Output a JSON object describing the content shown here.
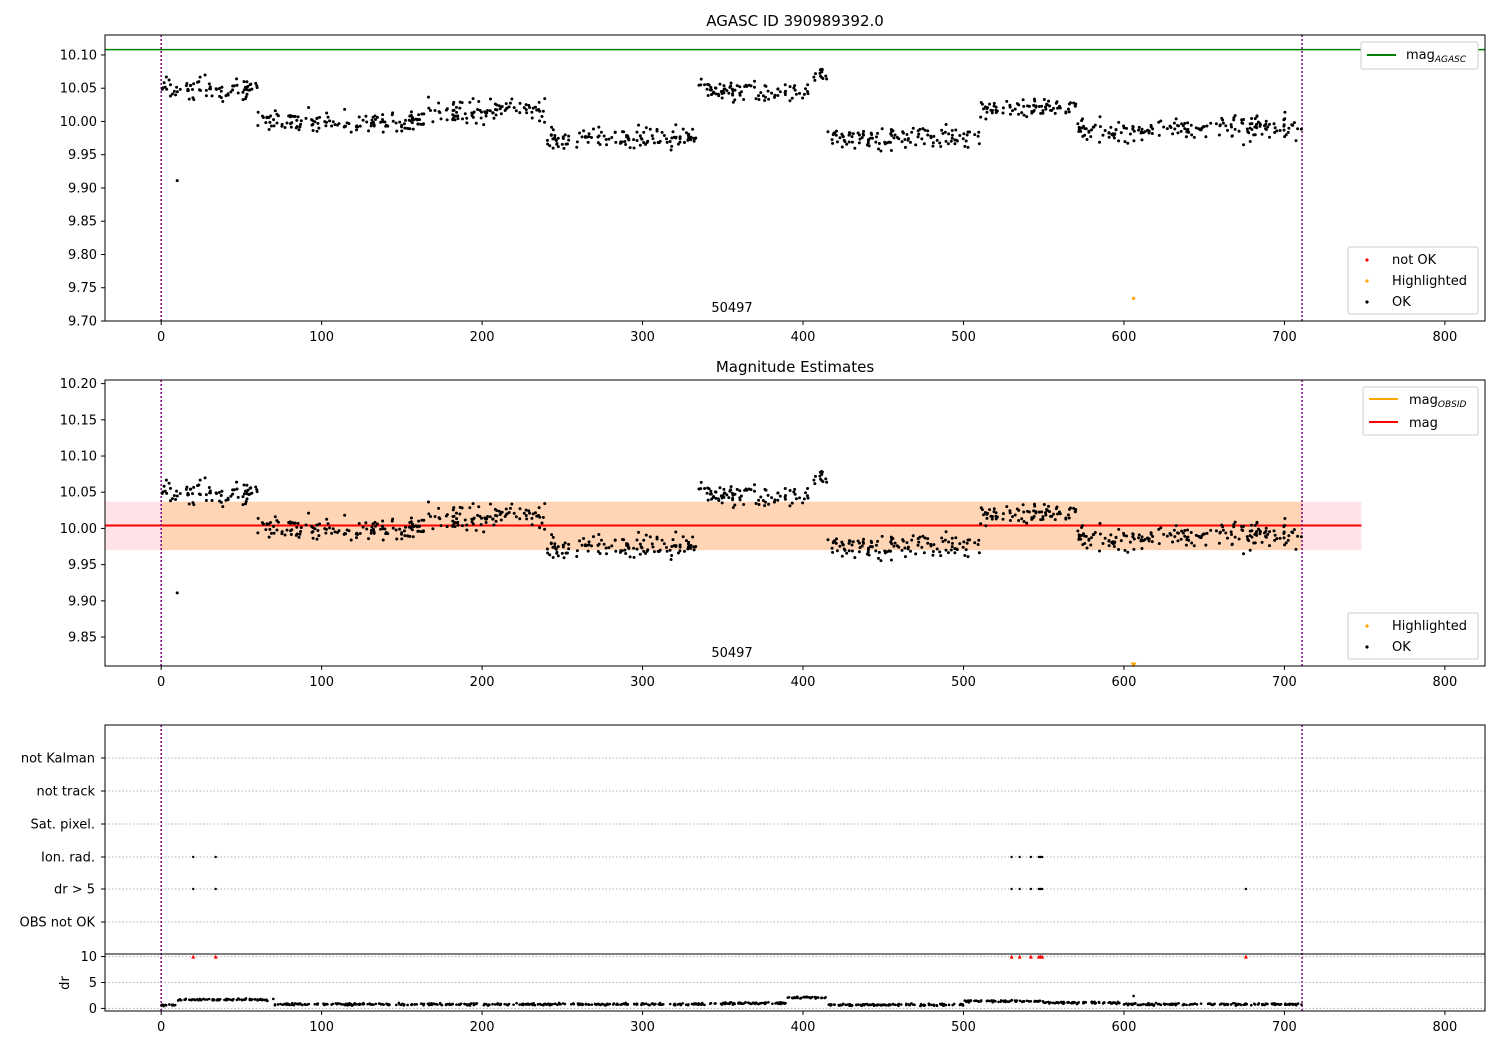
{
  "figure": {
    "panel1_title": "AGASC ID 390989392.0",
    "panel2_title": "Magnitude Estimates",
    "obsid_label": "50497"
  },
  "colors": {
    "ok": "#000000",
    "not_ok": "#ff0000",
    "highlighted": "#ffa500",
    "mag_agasc": "#008000",
    "mag_obsid": "#ffa500",
    "mag": "#ff0000",
    "band": "#ffc0cb",
    "obsid_band": "#ffa500",
    "divider": "#800080"
  },
  "chart_data": [
    {
      "type": "scatter",
      "title": "AGASC ID 390989392.0",
      "xlim": [
        -35,
        825
      ],
      "ylim": [
        9.7,
        10.13
      ],
      "x_ticks": [
        "0",
        "100",
        "200",
        "300",
        "400",
        "500",
        "600",
        "700",
        "800"
      ],
      "y_ticks": [
        "9.70",
        "9.75",
        "9.80",
        "9.85",
        "9.90",
        "9.95",
        "10.00",
        "10.05",
        "10.10"
      ],
      "grid": false,
      "legends": [
        {
          "position": "top-right",
          "entries": [
            "mag_AGASC"
          ]
        },
        {
          "position": "bottom-right",
          "entries": [
            "not OK",
            "Highlighted",
            "OK"
          ]
        }
      ],
      "mag_agasc": 10.108,
      "obsid_boundaries": [
        0,
        711
      ],
      "outliers": [
        {
          "x": 10,
          "y": 9.911
        }
      ],
      "highlighted": [
        {
          "x": 606,
          "y": 9.734
        }
      ],
      "ok_segments": [
        {
          "x0": 0,
          "x1": 60,
          "level": 10.05,
          "spread": 0.025
        },
        {
          "x0": 60,
          "x1": 165,
          "level": 10.0,
          "spread": 0.025
        },
        {
          "x0": 165,
          "x1": 240,
          "level": 10.015,
          "spread": 0.025
        },
        {
          "x0": 240,
          "x1": 335,
          "level": 9.975,
          "spread": 0.025
        },
        {
          "x0": 335,
          "x1": 405,
          "level": 10.045,
          "spread": 0.02
        },
        {
          "x0": 405,
          "x1": 415,
          "level": 10.07,
          "spread": 0.015
        },
        {
          "x0": 415,
          "x1": 510,
          "level": 9.975,
          "spread": 0.025
        },
        {
          "x0": 510,
          "x1": 570,
          "level": 10.02,
          "spread": 0.02
        },
        {
          "x0": 570,
          "x1": 650,
          "level": 9.985,
          "spread": 0.025
        },
        {
          "x0": 650,
          "x1": 711,
          "level": 9.99,
          "spread": 0.03
        }
      ]
    },
    {
      "type": "scatter",
      "title": "Magnitude Estimates",
      "xlim": [
        -35,
        825
      ],
      "ylim": [
        9.81,
        10.205
      ],
      "x_ticks": [
        "0",
        "100",
        "200",
        "300",
        "400",
        "500",
        "600",
        "700",
        "800"
      ],
      "y_ticks": [
        "9.85",
        "9.90",
        "9.95",
        "10.00",
        "10.05",
        "10.10",
        "10.15",
        "10.20"
      ],
      "grid": false,
      "legends": [
        {
          "position": "top-right",
          "entries": [
            "mag_OBSID",
            "mag"
          ]
        },
        {
          "position": "bottom-right",
          "entries": [
            "Highlighted",
            "OK"
          ]
        }
      ],
      "mag": 10.004,
      "mag_obsid": 10.004,
      "band": [
        9.97,
        10.037
      ],
      "band_xrange": [
        -35,
        748
      ],
      "obsid_band_xrange": [
        0,
        711
      ],
      "highlighted": [
        {
          "x": 606,
          "y": 9.812
        }
      ]
    },
    {
      "type": "scatter",
      "xlim": [
        -35,
        825
      ],
      "x_ticks": [
        "0",
        "100",
        "200",
        "300",
        "400",
        "500",
        "600",
        "700",
        "800"
      ],
      "flag_labels": [
        "not Kalman",
        "not track",
        "Sat. pixel.",
        "Ion. rad.",
        "dr > 5",
        "OBS not OK"
      ],
      "ion_rad_x": [
        20,
        34,
        530,
        535,
        542,
        547,
        548,
        549
      ],
      "dr5_x": [
        20,
        34,
        530,
        535,
        542,
        547,
        548,
        549,
        676
      ],
      "dr_ylabel": "dr",
      "dr_ticks": [
        "0",
        "5",
        "10"
      ],
      "dr_ylim": [
        -0.5,
        10.5
      ],
      "dr_flag_value": 10,
      "dr_segments": [
        {
          "x0": 0,
          "x1": 10,
          "level": 0.6
        },
        {
          "x0": 10,
          "x1": 70,
          "level": 1.7
        },
        {
          "x0": 70,
          "x1": 200,
          "level": 0.8
        },
        {
          "x0": 200,
          "x1": 340,
          "level": 0.8
        },
        {
          "x0": 340,
          "x1": 390,
          "level": 1.0
        },
        {
          "x0": 390,
          "x1": 415,
          "level": 2.1
        },
        {
          "x0": 415,
          "x1": 500,
          "level": 0.7
        },
        {
          "x0": 500,
          "x1": 550,
          "level": 1.4
        },
        {
          "x0": 550,
          "x1": 600,
          "level": 1.1
        },
        {
          "x0": 600,
          "x1": 711,
          "level": 0.8
        }
      ],
      "dr_spikes": [
        {
          "x": 606,
          "y": 2.4
        }
      ]
    }
  ]
}
